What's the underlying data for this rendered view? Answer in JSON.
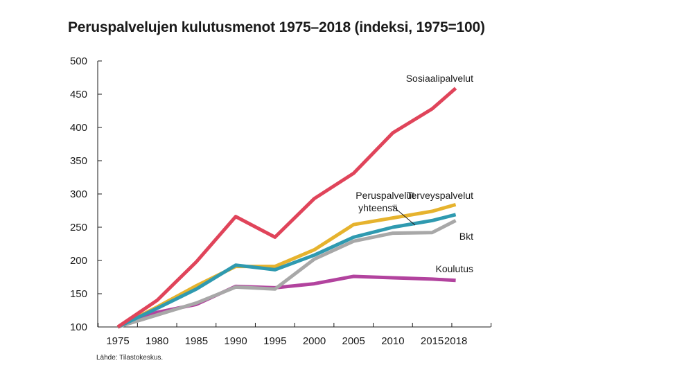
{
  "title": "Peruspalvelujen kulutusmenot 1975–2018 (indeksi, 1975=100)",
  "source": "Lähde: Tilastokeskus.",
  "chart_data": {
    "type": "line",
    "title": "Peruspalvelujen kulutusmenot 1975–2018 (indeksi, 1975=100)",
    "x": [
      1975,
      1980,
      1985,
      1990,
      1995,
      2000,
      2005,
      2010,
      2015,
      2018
    ],
    "xticks": [
      "1975",
      "1980",
      "1985",
      "1990",
      "1995",
      "2000",
      "2005",
      "2010",
      "2015",
      "2018"
    ],
    "yticks": [
      "100",
      "150",
      "200",
      "250",
      "300",
      "350",
      "400",
      "450",
      "500"
    ],
    "ylim": [
      100,
      500
    ],
    "grid": false,
    "series": [
      {
        "name": "Sosiaalipalvelut",
        "color": "#e0445a",
        "values": [
          100,
          140,
          198,
          266,
          235,
          293,
          331,
          392,
          428,
          459
        ]
      },
      {
        "name": "Terveyspalvelut",
        "color": "#e6b32e",
        "values": [
          100,
          130,
          162,
          191,
          191,
          216,
          254,
          264,
          274,
          284
        ]
      },
      {
        "name": "Peruspalvelut yhteensä",
        "color": "#2f9ab0",
        "values": [
          100,
          128,
          157,
          193,
          186,
          208,
          235,
          250,
          260,
          269
        ]
      },
      {
        "name": "Bkt",
        "color": "#a8a8a8",
        "values": [
          100,
          118,
          136,
          160,
          157,
          202,
          229,
          241,
          242,
          260
        ]
      },
      {
        "name": "Koulutus",
        "color": "#b2439e",
        "values": [
          100,
          122,
          134,
          161,
          159,
          165,
          176,
          174,
          172,
          170
        ]
      }
    ]
  }
}
